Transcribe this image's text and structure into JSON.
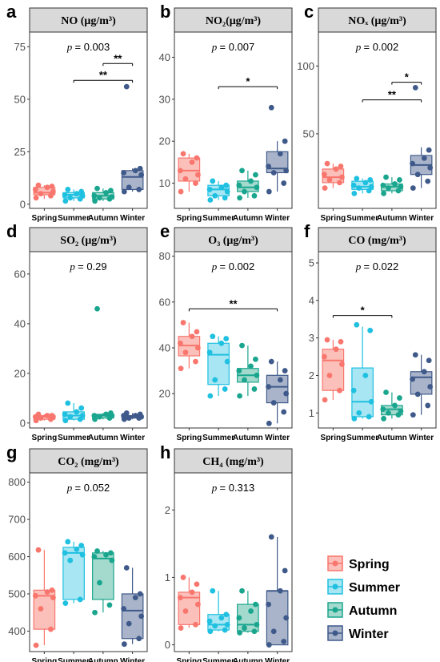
{
  "seasons": [
    {
      "name": "Spring",
      "color": "#F8766D",
      "fill": "#FCC0BA"
    },
    {
      "name": "Summer",
      "color": "#1FC0E0",
      "fill": "#A8E6F3"
    },
    {
      "name": "Autumn",
      "color": "#1AA68E",
      "fill": "#A3DACD"
    },
    {
      "name": "Winter",
      "color": "#3F5A8A",
      "fill": "#A9B4CA"
    }
  ],
  "legend": [
    "Spring",
    "Summer",
    "Autumn",
    "Winter"
  ],
  "chart_data": [
    {
      "type": "box",
      "letter": "a",
      "title": "NO (μg/m³)",
      "p_text": "= 0.003",
      "categories": [
        "Spring",
        "Summer",
        "Autumn",
        "Winter"
      ],
      "ylim": [
        -2,
        82
      ],
      "yticks": [
        0,
        25,
        50,
        75
      ],
      "boxes": [
        {
          "q1": 4.5,
          "median": 5.5,
          "q3": 8,
          "lo": 2.5,
          "hi": 9
        },
        {
          "q1": 3,
          "median": 4.5,
          "q3": 5.5,
          "lo": 1.5,
          "hi": 7
        },
        {
          "q1": 2.5,
          "median": 4,
          "q3": 5.5,
          "lo": 1.5,
          "hi": 7.5
        },
        {
          "q1": 7,
          "median": 13,
          "q3": 16,
          "lo": 6,
          "hi": 17
        }
      ],
      "points": [
        [
          3,
          4,
          5,
          6,
          7,
          8,
          8.5,
          9
        ],
        [
          1.5,
          2.5,
          3,
          4,
          4.5,
          5,
          6,
          7
        ],
        [
          1.5,
          2.5,
          3,
          3.5,
          4,
          5.5,
          6.5,
          7.5
        ],
        [
          6,
          7,
          8,
          14,
          15,
          16,
          17,
          56
        ]
      ],
      "sig": [
        {
          "from": 2,
          "to": 3,
          "y": 67,
          "label": "**"
        },
        {
          "from": 1,
          "to": 3,
          "y": 59,
          "label": "**"
        }
      ]
    },
    {
      "type": "box",
      "letter": "b",
      "title": "NO₂(μg/m³)",
      "p_text": "= 0.007",
      "categories": [
        "Spring",
        "Summer",
        "Autumn",
        "Winter"
      ],
      "ylim": [
        4,
        46
      ],
      "yticks": [
        10,
        20,
        30,
        40
      ],
      "boxes": [
        {
          "q1": 10.5,
          "median": 13,
          "q3": 16,
          "lo": 8,
          "hi": 17
        },
        {
          "q1": 7,
          "median": 8.5,
          "q3": 9.5,
          "lo": 6,
          "hi": 10.5
        },
        {
          "q1": 8,
          "median": 9,
          "q3": 10.5,
          "lo": 6.5,
          "hi": 13
        },
        {
          "q1": 12.5,
          "median": 13.5,
          "q3": 17.5,
          "lo": 8,
          "hi": 20
        }
      ],
      "points": [
        [
          8,
          10,
          11,
          12,
          13,
          15,
          16,
          17
        ],
        [
          6,
          6.5,
          7,
          8,
          8.5,
          9,
          9.5,
          10.5
        ],
        [
          6.5,
          7,
          8,
          9,
          9.5,
          10.5,
          12,
          13
        ],
        [
          8,
          10,
          12.5,
          13,
          14,
          17,
          20,
          28
        ]
      ],
      "sig": [
        {
          "from": 1,
          "to": 3,
          "y": 33,
          "label": "*"
        }
      ]
    },
    {
      "type": "box",
      "letter": "c",
      "title": "NOₓ (μg/m³)",
      "p_text": "= 0.002",
      "categories": [
        "Spring",
        "Summer",
        "Autumn",
        "Winter"
      ],
      "ylim": [
        -5,
        125
      ],
      "yticks": [
        50,
        100
      ],
      "boxes": [
        {
          "q1": 14,
          "median": 18,
          "q3": 24,
          "lo": 10,
          "hi": 28
        },
        {
          "q1": 9,
          "median": 11,
          "q3": 15,
          "lo": 6,
          "hi": 17
        },
        {
          "q1": 8,
          "median": 11,
          "q3": 13,
          "lo": 6,
          "hi": 18
        },
        {
          "q1": 20,
          "median": 27,
          "q3": 34,
          "lo": 10,
          "hi": 40
        }
      ],
      "points": [
        [
          10,
          14,
          16,
          18,
          20,
          24,
          26,
          28
        ],
        [
          6,
          8,
          10,
          11,
          12,
          14,
          16,
          17
        ],
        [
          6,
          8,
          10,
          11,
          12,
          13,
          16,
          18
        ],
        [
          10,
          15,
          20,
          25,
          28,
          32,
          38,
          84
        ]
      ],
      "sig": [
        {
          "from": 2,
          "to": 3,
          "y": 88,
          "label": "*"
        },
        {
          "from": 1,
          "to": 3,
          "y": 75,
          "label": "**"
        }
      ]
    },
    {
      "type": "box",
      "letter": "d",
      "title": "SO₂ (μg/m³)",
      "p_text": "= 0.29",
      "categories": [
        "Spring",
        "Summer",
        "Autumn",
        "Winter"
      ],
      "ylim": [
        -2,
        69
      ],
      "yticks": [
        0,
        20,
        40,
        60
      ],
      "boxes": [
        {
          "q1": 1.5,
          "median": 2.5,
          "q3": 3,
          "lo": 1,
          "hi": 3.5
        },
        {
          "q1": 1.5,
          "median": 3,
          "q3": 4.5,
          "lo": 1,
          "hi": 8
        },
        {
          "q1": 2,
          "median": 3,
          "q3": 3.5,
          "lo": 1.5,
          "hi": 4
        },
        {
          "q1": 2,
          "median": 2.5,
          "q3": 3,
          "lo": 1.5,
          "hi": 4
        }
      ],
      "points": [
        [
          1,
          1.5,
          2,
          2.5,
          2.5,
          3,
          3,
          3.5
        ],
        [
          1,
          1.5,
          2.5,
          3,
          3.5,
          4.5,
          6,
          8
        ],
        [
          1.5,
          2,
          2.5,
          3,
          3,
          3.5,
          4,
          46
        ],
        [
          1.5,
          2,
          2,
          2.5,
          3,
          3,
          3.5,
          4
        ]
      ],
      "sig": []
    },
    {
      "type": "box",
      "letter": "e",
      "title": "O₃ (μg/m³)",
      "p_text": "= 0.002",
      "categories": [
        "Spring",
        "Summer",
        "Autumn",
        "Winter"
      ],
      "ylim": [
        5,
        82
      ],
      "yticks": [
        20,
        40,
        60,
        80
      ],
      "boxes": [
        {
          "q1": 36.5,
          "median": 41,
          "q3": 45,
          "lo": 31,
          "hi": 51
        },
        {
          "q1": 24,
          "median": 37,
          "q3": 42,
          "lo": 19,
          "hi": 45
        },
        {
          "q1": 25,
          "median": 28,
          "q3": 31,
          "lo": 19,
          "hi": 41
        },
        {
          "q1": 16,
          "median": 23,
          "q3": 28,
          "lo": 7,
          "hi": 34
        }
      ],
      "points": [
        [
          31,
          34,
          38,
          40,
          42,
          45,
          47,
          51
        ],
        [
          19,
          22,
          26,
          34,
          38,
          42,
          44,
          45
        ],
        [
          19,
          22,
          26,
          28,
          30,
          32,
          35,
          41
        ],
        [
          7,
          12,
          16,
          20,
          23,
          26,
          30,
          34
        ]
      ],
      "sig": [
        {
          "from": 0,
          "to": 3,
          "y": 57,
          "label": "**"
        }
      ]
    },
    {
      "type": "box",
      "letter": "f",
      "title": "CO (mg/m³)",
      "p_text": "= 0.022",
      "categories": [
        "Spring",
        "Summer",
        "Autumn",
        "Winter"
      ],
      "ylim": [
        0.6,
        5.3
      ],
      "yticks": [
        1,
        2,
        3,
        4,
        5
      ],
      "boxes": [
        {
          "q1": 1.6,
          "median": 2.4,
          "q3": 2.7,
          "lo": 1.35,
          "hi": 2.95
        },
        {
          "q1": 0.9,
          "median": 1.3,
          "q3": 2.2,
          "lo": 0.85,
          "hi": 3.3
        },
        {
          "q1": 0.95,
          "median": 1.1,
          "q3": 1.2,
          "lo": 0.85,
          "hi": 1.55
        },
        {
          "q1": 1.5,
          "median": 1.95,
          "q3": 2.1,
          "lo": 0.95,
          "hi": 2.55
        }
      ],
      "points": [
        [
          1.35,
          1.6,
          2.0,
          2.3,
          2.5,
          2.7,
          2.9,
          2.95
        ],
        [
          0.85,
          0.9,
          1.0,
          1.3,
          1.6,
          2.0,
          3.2,
          3.35
        ],
        [
          0.85,
          0.95,
          1.0,
          1.05,
          1.1,
          1.2,
          1.4,
          1.55
        ],
        [
          0.95,
          1.2,
          1.5,
          1.7,
          1.9,
          2.1,
          2.4,
          2.55
        ]
      ],
      "sig": [
        {
          "from": 0,
          "to": 2,
          "y": 3.6,
          "label": "*"
        }
      ]
    },
    {
      "type": "box",
      "letter": "g",
      "title": "CO₂ (mg/m³)",
      "p_text": "= 0.052",
      "categories": [
        "Spring",
        "Summer",
        "Autumn",
        "Winter"
      ],
      "ylim": [
        345,
        825
      ],
      "yticks": [
        400,
        500,
        600,
        700,
        800
      ],
      "boxes": [
        {
          "q1": 405,
          "median": 495,
          "q3": 510,
          "lo": 362,
          "hi": 618
        },
        {
          "q1": 485,
          "median": 610,
          "q3": 625,
          "lo": 475,
          "hi": 640
        },
        {
          "q1": 485,
          "median": 595,
          "q3": 610,
          "lo": 450,
          "hi": 615
        },
        {
          "q1": 380,
          "median": 455,
          "q3": 500,
          "lo": 365,
          "hi": 570
        }
      ],
      "points": [
        [
          362,
          405,
          460,
          490,
          495,
          505,
          510,
          618
        ],
        [
          475,
          485,
          590,
          605,
          610,
          620,
          630,
          640
        ],
        [
          450,
          470,
          530,
          590,
          600,
          605,
          610,
          615
        ],
        [
          365,
          380,
          420,
          440,
          460,
          490,
          500,
          570
        ]
      ],
      "sig": []
    },
    {
      "type": "box",
      "letter": "h",
      "title": "CH₄ (mg/m³)",
      "p_text": "= 0.313",
      "categories": [
        "Spring",
        "Summer",
        "Autumn",
        "Winter"
      ],
      "ylim": [
        -0.1,
        2.55
      ],
      "yticks": [
        0,
        1,
        2
      ],
      "boxes": [
        {
          "q1": 0.3,
          "median": 0.7,
          "q3": 0.78,
          "lo": 0.25,
          "hi": 1.0
        },
        {
          "q1": 0.22,
          "median": 0.3,
          "q3": 0.45,
          "lo": 0.2,
          "hi": 0.8
        },
        {
          "q1": 0.2,
          "median": 0.3,
          "q3": 0.6,
          "lo": 0.18,
          "hi": 0.8
        },
        {
          "q1": 0.0,
          "median": 0.8,
          "q3": 0.8,
          "lo": 0.0,
          "hi": 1.6
        }
      ],
      "points": [
        [
          0.25,
          0.3,
          0.5,
          0.6,
          0.7,
          0.78,
          0.9,
          1.0
        ],
        [
          0.2,
          0.22,
          0.28,
          0.3,
          0.35,
          0.4,
          0.45,
          0.8
        ],
        [
          0.18,
          0.2,
          0.25,
          0.3,
          0.4,
          0.5,
          0.6,
          0.8
        ],
        [
          0.0,
          0.05,
          0.2,
          0.4,
          0.6,
          0.8,
          1.1,
          1.6
        ]
      ],
      "sig": []
    }
  ]
}
